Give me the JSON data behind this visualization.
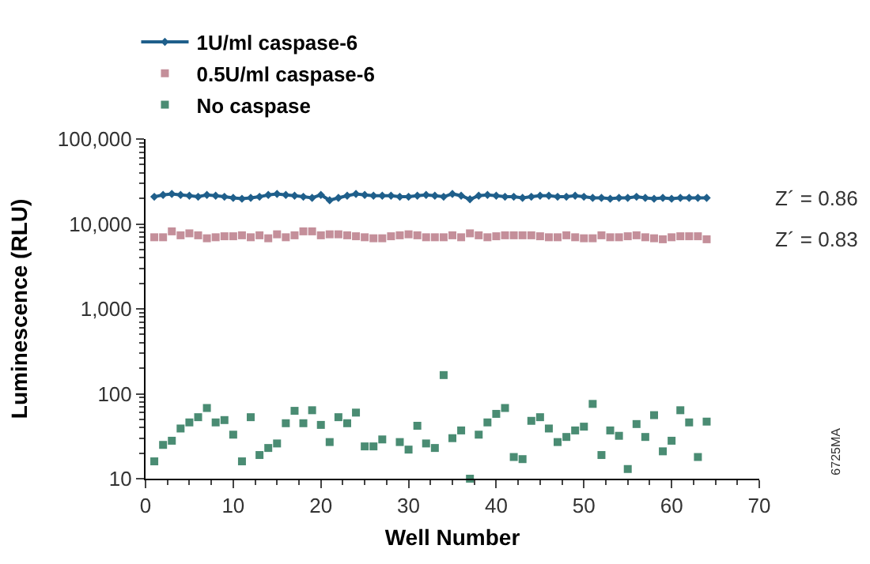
{
  "chart_data": {
    "type": "scatter",
    "xlabel": "Well Number",
    "ylabel": "Luminescence (RLU)",
    "log": "y",
    "xlim": [
      0,
      70
    ],
    "xticks": [
      0,
      10,
      20,
      30,
      40,
      50,
      60,
      70
    ],
    "ylim": [
      10,
      100000
    ],
    "yticks": [
      {
        "value": 10,
        "label": "10"
      },
      {
        "value": 100,
        "label": "100"
      },
      {
        "value": 1000,
        "label": "1,000"
      },
      {
        "value": 10000,
        "label": "10,000"
      },
      {
        "value": 100000,
        "label": "100,000"
      }
    ],
    "legend": "top left",
    "x": [
      1,
      2,
      3,
      4,
      5,
      6,
      7,
      8,
      9,
      10,
      11,
      12,
      13,
      14,
      15,
      16,
      17,
      18,
      19,
      20,
      21,
      22,
      23,
      24,
      25,
      26,
      27,
      28,
      29,
      30,
      31,
      32,
      33,
      34,
      35,
      36,
      37,
      38,
      39,
      40,
      41,
      42,
      43,
      44,
      45,
      46,
      47,
      48,
      49,
      50,
      51,
      52,
      53,
      54,
      55,
      56,
      57,
      58,
      59,
      60,
      61,
      62,
      63,
      64
    ],
    "series": [
      {
        "name": "1U/ml caspase-6",
        "type": "line",
        "marker": "diamond",
        "color": "#1f5f8b",
        "values": [
          20900,
          22000,
          22600,
          22000,
          21500,
          20900,
          22000,
          21500,
          20900,
          20300,
          19800,
          20300,
          20900,
          22000,
          22600,
          22000,
          21500,
          20900,
          20300,
          22000,
          19000,
          20300,
          21500,
          22600,
          22000,
          21500,
          21500,
          21500,
          20900,
          20900,
          21500,
          22000,
          21500,
          20900,
          22600,
          21500,
          19500,
          21500,
          22000,
          21500,
          20900,
          20900,
          20300,
          20900,
          21500,
          21500,
          20900,
          20900,
          21500,
          20900,
          20300,
          20300,
          19800,
          20300,
          20300,
          20900,
          20300,
          19800,
          20300,
          19800,
          20300,
          20300,
          20300,
          20300
        ]
      },
      {
        "name": "0.5U/ml caspase-6",
        "marker": "square",
        "color": "#c48f9a",
        "values": [
          6970,
          6970,
          8180,
          7350,
          7750,
          7350,
          6780,
          6970,
          7160,
          7160,
          7350,
          6970,
          7350,
          6780,
          7550,
          6970,
          7350,
          8180,
          8180,
          7350,
          7550,
          7550,
          7350,
          7160,
          6970,
          6780,
          6780,
          7160,
          7350,
          7550,
          7350,
          6970,
          6970,
          6970,
          7350,
          6970,
          7750,
          7350,
          6970,
          7160,
          7350,
          7350,
          7350,
          7350,
          7160,
          6970,
          6970,
          7350,
          6970,
          6780,
          6780,
          7350,
          6970,
          6970,
          7160,
          7350,
          6970,
          6780,
          6600,
          6970,
          7160,
          7160,
          7160,
          6600
        ]
      },
      {
        "name": "No caspase",
        "marker": "square",
        "color": "#4a8c73",
        "values": [
          16,
          25,
          28,
          39,
          46,
          53,
          68,
          46,
          49,
          33,
          16,
          53,
          19,
          23,
          26,
          45,
          63,
          45,
          64,
          43,
          27,
          53,
          45,
          60,
          24,
          24,
          29,
          null,
          27,
          22,
          42,
          26,
          23,
          166,
          30,
          37,
          10,
          33,
          46,
          58,
          68,
          18,
          17,
          48,
          53,
          39,
          27,
          31,
          37,
          41,
          76,
          19,
          37,
          32,
          13,
          44,
          31,
          56,
          21,
          28,
          64,
          46,
          18,
          47
        ]
      }
    ],
    "annotations": [
      "Z´ = 0.86",
      "Z´ = 0.83",
      "6725MA"
    ]
  }
}
